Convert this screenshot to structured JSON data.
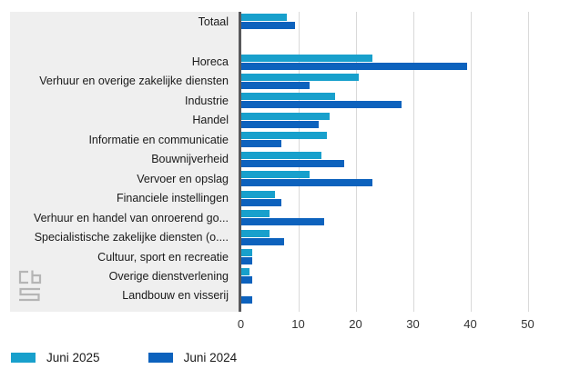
{
  "chart_data": {
    "type": "bar",
    "orientation": "horizontal",
    "categories": [
      "Totaal",
      "Horeca",
      "Verhuur en overige zakelijke diensten",
      "Industrie",
      "Handel",
      "Informatie en communicatie",
      "Bouwnijverheid",
      "Vervoer en opslag",
      "Financiele instellingen",
      "Verhuur en handel van onroerend go...",
      "Specialistische zakelijke diensten (o....",
      "Cultuur, sport en recreatie",
      "Overige dienstverlening",
      "Landbouw en visserij"
    ],
    "series": [
      {
        "name": "Juni 2025",
        "color": "#18a0cc",
        "values": [
          8,
          23,
          20.5,
          16.5,
          15.5,
          15,
          14,
          12,
          6,
          5,
          5,
          2,
          1.5,
          0
        ]
      },
      {
        "name": "Juni 2024",
        "color": "#0d62bd",
        "values": [
          9.5,
          39.5,
          12,
          28,
          13.5,
          7,
          18,
          23,
          7,
          14.5,
          7.5,
          2,
          2,
          2
        ]
      }
    ],
    "xlim": [
      0,
      50
    ],
    "xtick_labels": [
      "0",
      "10",
      "20",
      "30",
      "40",
      "50"
    ],
    "xticks": [
      0,
      10,
      20,
      30,
      40,
      50
    ],
    "grid": "vertical",
    "legend_position": "bottom-left",
    "gap_after_first_category": true,
    "style": {
      "label_panel_bg": "#efefef",
      "gridline_color": "#d9d9d9",
      "axis_line_color": "#58585b",
      "text_color": "#1a1a1a"
    }
  },
  "branding": {
    "logo_name": "cbs-logo"
  }
}
